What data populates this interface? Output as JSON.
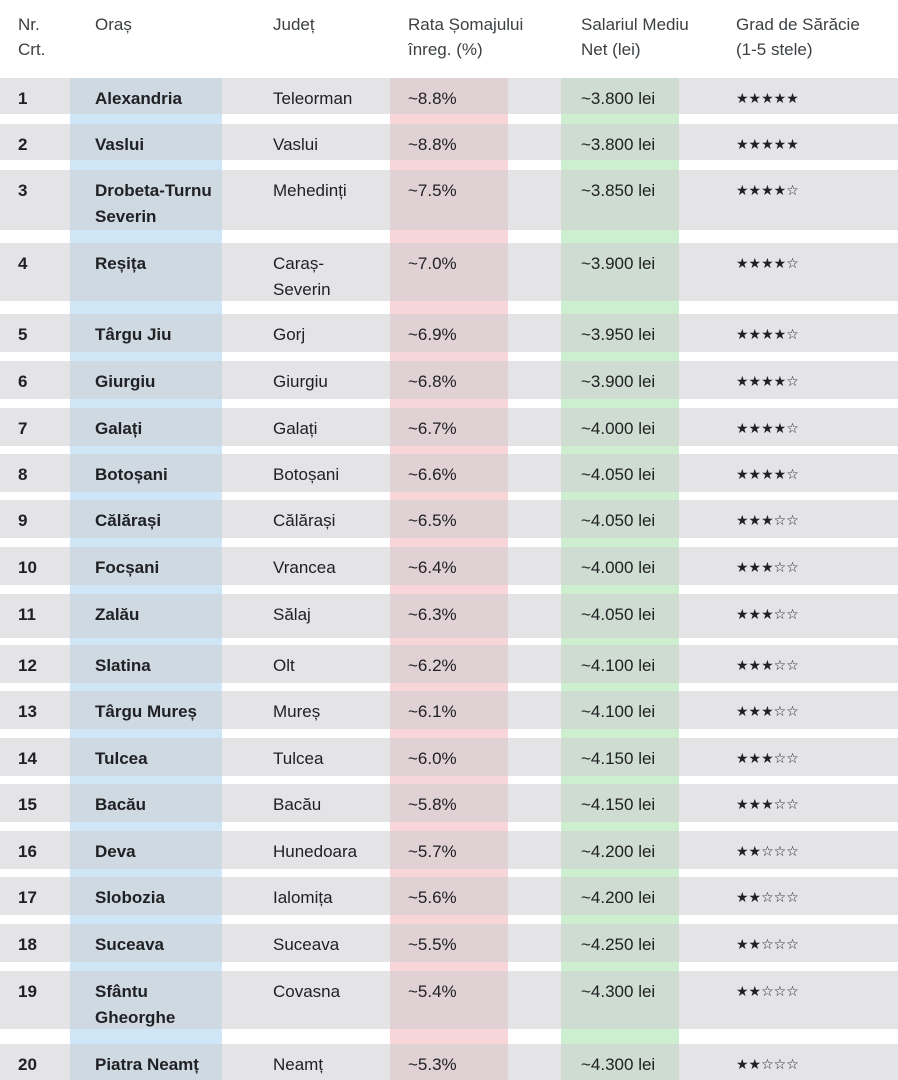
{
  "headers": {
    "nr": "Nr.\nCrt.",
    "nr_line1": "Nr.",
    "nr_line2": "Crt.",
    "city": "Oraș",
    "county": "Județ",
    "rate_line1": "Rata Șomajului",
    "rate_line2": "înreg. (%)",
    "salary_line1": "Salariul Mediu",
    "salary_line2": "Net (lei)",
    "poverty_line1": "Grad de Sărăcie",
    "poverty_line2": "(1-5 stele)"
  },
  "column_colors": {
    "city": "#a8d2ee",
    "rate": "#f1b3b8",
    "salary": "#bde8c0",
    "row_stripe": "#dcdcdf"
  },
  "rows": [
    {
      "nr": "1",
      "city": "Alexandria",
      "city2": "",
      "county": "Teleorman",
      "county2": "",
      "rate": "~8.8%",
      "salary": "~3.800 lei",
      "stars": "★★★★★",
      "stars_value": 5
    },
    {
      "nr": "2",
      "city": "Vaslui",
      "city2": "",
      "county": "Vaslui",
      "county2": "",
      "rate": "~8.8%",
      "salary": "~3.800 lei",
      "stars": "★★★★★",
      "stars_value": 5
    },
    {
      "nr": "3",
      "city": "Drobeta-Turnu",
      "city2": "Severin",
      "county": "Mehedinți",
      "county2": "",
      "rate": "~7.5%",
      "salary": "~3.850 lei",
      "stars": "★★★★☆",
      "stars_value": 4
    },
    {
      "nr": "4",
      "city": "Reșița",
      "city2": "",
      "county": "Caraș-",
      "county2": "Severin",
      "rate": "~7.0%",
      "salary": "~3.900 lei",
      "stars": "★★★★☆",
      "stars_value": 4
    },
    {
      "nr": "5",
      "city": "Târgu Jiu",
      "city2": "",
      "county": "Gorj",
      "county2": "",
      "rate": "~6.9%",
      "salary": "~3.950 lei",
      "stars": "★★★★☆",
      "stars_value": 4
    },
    {
      "nr": "6",
      "city": "Giurgiu",
      "city2": "",
      "county": "Giurgiu",
      "county2": "",
      "rate": "~6.8%",
      "salary": "~3.900 lei",
      "stars": "★★★★☆",
      "stars_value": 4
    },
    {
      "nr": "7",
      "city": "Galați",
      "city2": "",
      "county": "Galați",
      "county2": "",
      "rate": "~6.7%",
      "salary": "~4.000 lei",
      "stars": "★★★★☆",
      "stars_value": 4
    },
    {
      "nr": "8",
      "city": "Botoșani",
      "city2": "",
      "county": "Botoșani",
      "county2": "",
      "rate": "~6.6%",
      "salary": "~4.050 lei",
      "stars": "★★★★☆",
      "stars_value": 4
    },
    {
      "nr": "9",
      "city": "Călărași",
      "city2": "",
      "county": "Călărași",
      "county2": "",
      "rate": "~6.5%",
      "salary": "~4.050 lei",
      "stars": "★★★☆☆",
      "stars_value": 3
    },
    {
      "nr": "10",
      "city": "Focșani",
      "city2": "",
      "county": "Vrancea",
      "county2": "",
      "rate": "~6.4%",
      "salary": "~4.000 lei",
      "stars": "★★★☆☆",
      "stars_value": 3
    },
    {
      "nr": "11",
      "city": "Zalău",
      "city2": "",
      "county": "Sălaj",
      "county2": "",
      "rate": "~6.3%",
      "salary": "~4.050 lei",
      "stars": "★★★☆☆",
      "stars_value": 3
    },
    {
      "nr": "12",
      "city": "Slatina",
      "city2": "",
      "county": "Olt",
      "county2": "",
      "rate": "~6.2%",
      "salary": "~4.100 lei",
      "stars": "★★★☆☆",
      "stars_value": 3
    },
    {
      "nr": "13",
      "city": "Târgu Mureș",
      "city2": "",
      "county": "Mureș",
      "county2": "",
      "rate": "~6.1%",
      "salary": "~4.100 lei",
      "stars": "★★★☆☆",
      "stars_value": 3
    },
    {
      "nr": "14",
      "city": "Tulcea",
      "city2": "",
      "county": "Tulcea",
      "county2": "",
      "rate": "~6.0%",
      "salary": "~4.150 lei",
      "stars": "★★★☆☆",
      "stars_value": 3
    },
    {
      "nr": "15",
      "city": "Bacău",
      "city2": "",
      "county": "Bacău",
      "county2": "",
      "rate": "~5.8%",
      "salary": "~4.150 lei",
      "stars": "★★★☆☆",
      "stars_value": 3
    },
    {
      "nr": "16",
      "city": "Deva",
      "city2": "",
      "county": "Hunedoara",
      "county2": "",
      "rate": "~5.7%",
      "salary": "~4.200 lei",
      "stars": "★★☆☆☆",
      "stars_value": 2
    },
    {
      "nr": "17",
      "city": "Slobozia",
      "city2": "",
      "county": "Ialomița",
      "county2": "",
      "rate": "~5.6%",
      "salary": "~4.200 lei",
      "stars": "★★☆☆☆",
      "stars_value": 2
    },
    {
      "nr": "18",
      "city": "Suceava",
      "city2": "",
      "county": "Suceava",
      "county2": "",
      "rate": "~5.5%",
      "salary": "~4.250 lei",
      "stars": "★★☆☆☆",
      "stars_value": 2
    },
    {
      "nr": "19",
      "city": "Sfântu",
      "city2": "Gheorghe",
      "county": "Covasna",
      "county2": "",
      "rate": "~5.4%",
      "salary": "~4.300 lei",
      "stars": "★★☆☆☆",
      "stars_value": 2
    },
    {
      "nr": "20",
      "city": "Piatra Neamț",
      "city2": "",
      "county": "Neamț",
      "county2": "",
      "rate": "~5.3%",
      "salary": "~4.300 lei",
      "stars": "★★☆☆☆",
      "stars_value": 2
    }
  ]
}
